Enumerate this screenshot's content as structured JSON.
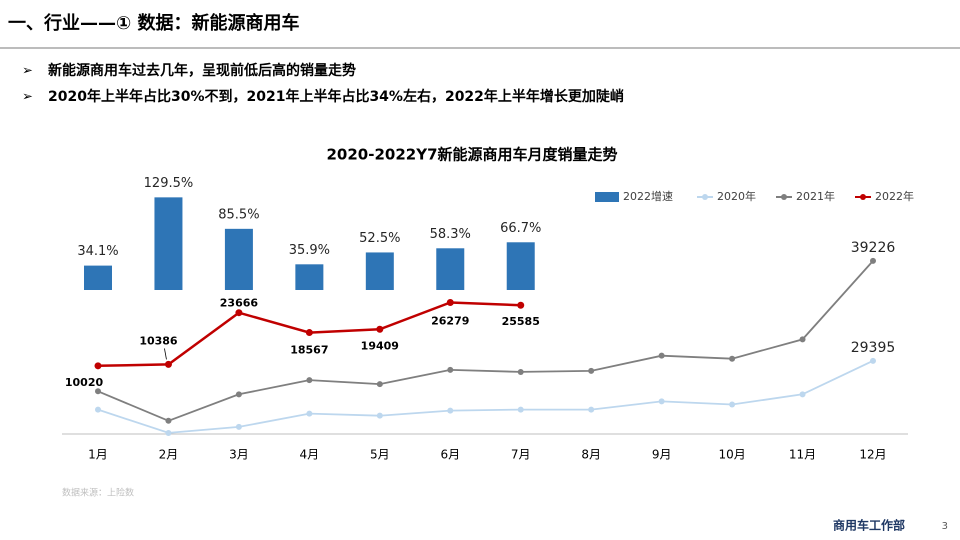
{
  "header": {
    "title": "一、行业——① 数据：新能源商用车"
  },
  "bullets": [
    "新能源商用车过去几年，呈现前低后高的销量走势",
    "2020年上半年占比30%不到，2021年上半年占比34%左右，2022年上半年增长更加陡峭"
  ],
  "chart_data": {
    "type": "combo",
    "title": "2020-2022Y7新能源商用车月度销量走势",
    "categories": [
      "1月",
      "2月",
      "3月",
      "4月",
      "5月",
      "6月",
      "7月",
      "8月",
      "9月",
      "10月",
      "11月",
      "12月"
    ],
    "ylim": [
      22000,
      40000
    ],
    "y2lim": [
      0,
      130
    ],
    "y3lim": [
      -8000,
      39000
    ],
    "series": [
      {
        "name": "2022增速",
        "type": "bar",
        "axis": "y2",
        "color": "#2e75b6",
        "values": [
          34.1,
          129.5,
          85.5,
          35.9,
          52.5,
          58.3,
          66.7,
          null,
          null,
          null,
          null,
          null
        ],
        "value_labels": [
          "34.1%",
          "129.5%",
          "85.5%",
          "35.9%",
          "52.5%",
          "58.3%",
          "66.7%",
          null,
          null,
          null,
          null,
          null
        ]
      },
      {
        "name": "2020年",
        "type": "line",
        "color": "#bdd7ee",
        "values": [
          24600,
          22300,
          22900,
          24200,
          24000,
          24500,
          24600,
          24600,
          25400,
          25100,
          26100,
          29395
        ]
      },
      {
        "name": "2021年",
        "type": "line",
        "color": "#7f7f7f",
        "values": [
          26400,
          23500,
          26100,
          27500,
          27100,
          28500,
          28300,
          28400,
          29900,
          29600,
          31500,
          39226
        ]
      },
      {
        "name": "2022年",
        "type": "line",
        "axis": "y3",
        "color": "#c00000",
        "values": [
          10020,
          10386,
          23666,
          18567,
          19409,
          26279,
          25585,
          null,
          null,
          null,
          null,
          null
        ]
      }
    ]
  },
  "source": "数据来源：上险数",
  "footer": {
    "department": "商用车工作部",
    "page": 3
  }
}
